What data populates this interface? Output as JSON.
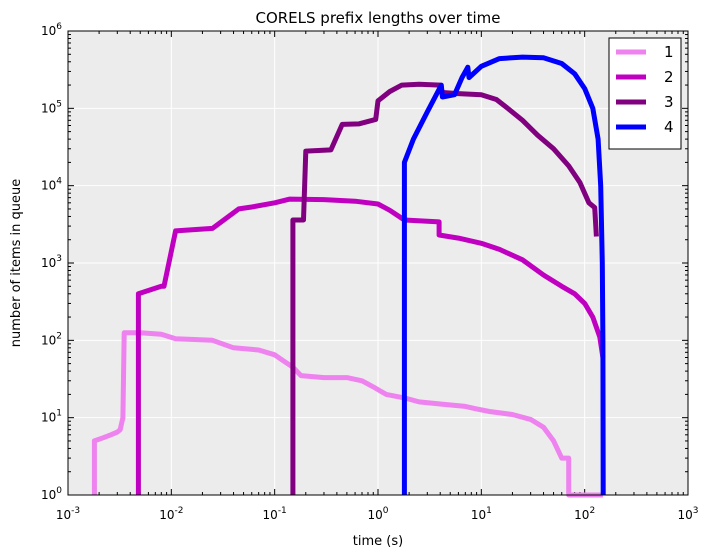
{
  "chart_data": {
    "type": "line",
    "title": "CORELS prefix lengths over time",
    "xlabel": "time (s)",
    "ylabel": "number of items in queue",
    "xscale": "log",
    "yscale": "log",
    "xlim": [
      0.001,
      1000
    ],
    "ylim": [
      1,
      1000000
    ],
    "x_ticks": [
      {
        "base": "10",
        "exp": "-3"
      },
      {
        "base": "10",
        "exp": "-2"
      },
      {
        "base": "10",
        "exp": "-1"
      },
      {
        "base": "10",
        "exp": "0"
      },
      {
        "base": "10",
        "exp": "1"
      },
      {
        "base": "10",
        "exp": "2"
      },
      {
        "base": "10",
        "exp": "3"
      }
    ],
    "y_ticks": [
      {
        "base": "10",
        "exp": "0"
      },
      {
        "base": "10",
        "exp": "1"
      },
      {
        "base": "10",
        "exp": "2"
      },
      {
        "base": "10",
        "exp": "3"
      },
      {
        "base": "10",
        "exp": "4"
      },
      {
        "base": "10",
        "exp": "5"
      },
      {
        "base": "10",
        "exp": "6"
      }
    ],
    "grid": true,
    "legend_position": "top-right",
    "series": [
      {
        "name": "1",
        "color": "#ee82ee",
        "points": [
          [
            0.0018,
            1
          ],
          [
            0.0018,
            5
          ],
          [
            0.0022,
            5.5
          ],
          [
            0.0026,
            6
          ],
          [
            0.003,
            6.5
          ],
          [
            0.0032,
            7
          ],
          [
            0.0034,
            10
          ],
          [
            0.0035,
            125
          ],
          [
            0.005,
            125
          ],
          [
            0.008,
            120
          ],
          [
            0.011,
            105
          ],
          [
            0.025,
            100
          ],
          [
            0.04,
            80
          ],
          [
            0.07,
            75
          ],
          [
            0.1,
            65
          ],
          [
            0.12,
            55
          ],
          [
            0.15,
            45
          ],
          [
            0.18,
            35
          ],
          [
            0.3,
            33
          ],
          [
            0.5,
            33
          ],
          [
            0.7,
            30
          ],
          [
            0.9,
            25
          ],
          [
            1.2,
            20
          ],
          [
            1.8,
            18
          ],
          [
            2.5,
            16
          ],
          [
            4,
            15
          ],
          [
            7,
            14
          ],
          [
            9,
            13
          ],
          [
            12,
            12
          ],
          [
            20,
            11
          ],
          [
            30,
            9.5
          ],
          [
            40,
            7.5
          ],
          [
            50,
            5
          ],
          [
            60,
            3
          ],
          [
            70,
            3
          ],
          [
            70,
            1
          ],
          [
            150,
            1
          ]
        ]
      },
      {
        "name": "2",
        "color": "#c000c0",
        "points": [
          [
            0.0048,
            1
          ],
          [
            0.0048,
            400
          ],
          [
            0.008,
            500
          ],
          [
            0.0085,
            500
          ],
          [
            0.011,
            2600
          ],
          [
            0.025,
            2800
          ],
          [
            0.045,
            5000
          ],
          [
            0.06,
            5300
          ],
          [
            0.1,
            6000
          ],
          [
            0.14,
            6700
          ],
          [
            0.3,
            6600
          ],
          [
            0.6,
            6300
          ],
          [
            1.0,
            5800
          ],
          [
            1.3,
            4800
          ],
          [
            1.8,
            3600
          ],
          [
            3.9,
            3400
          ],
          [
            3.9,
            2300
          ],
          [
            6,
            2100
          ],
          [
            10,
            1800
          ],
          [
            15,
            1500
          ],
          [
            25,
            1100
          ],
          [
            40,
            700
          ],
          [
            60,
            500
          ],
          [
            80,
            400
          ],
          [
            100,
            300
          ],
          [
            120,
            200
          ],
          [
            140,
            110
          ],
          [
            150,
            60
          ]
        ]
      },
      {
        "name": "3",
        "color": "#800080",
        "points": [
          [
            0.15,
            1
          ],
          [
            0.15,
            3600
          ],
          [
            0.19,
            3600
          ],
          [
            0.2,
            28000
          ],
          [
            0.35,
            29000
          ],
          [
            0.45,
            62000
          ],
          [
            0.65,
            63000
          ],
          [
            0.95,
            72000
          ],
          [
            1.0,
            125000
          ],
          [
            1.3,
            165000
          ],
          [
            1.7,
            200000
          ],
          [
            2.5,
            205000
          ],
          [
            4.0,
            200000
          ],
          [
            4.2,
            160000
          ],
          [
            6,
            155000
          ],
          [
            10,
            150000
          ],
          [
            14,
            130000
          ],
          [
            18,
            100000
          ],
          [
            25,
            70000
          ],
          [
            35,
            45000
          ],
          [
            50,
            30000
          ],
          [
            70,
            18000
          ],
          [
            90,
            11000
          ],
          [
            110,
            6000
          ],
          [
            125,
            5200
          ],
          [
            130,
            2200
          ]
        ]
      },
      {
        "name": "4",
        "color": "#0000ff",
        "points": [
          [
            1.8,
            1
          ],
          [
            1.8,
            20000
          ],
          [
            2.2,
            40000
          ],
          [
            3.0,
            90000
          ],
          [
            4.1,
            200000
          ],
          [
            4.2,
            140000
          ],
          [
            5.5,
            150000
          ],
          [
            6.5,
            250000
          ],
          [
            7.4,
            340000
          ],
          [
            7.6,
            250000
          ],
          [
            10,
            350000
          ],
          [
            15,
            440000
          ],
          [
            25,
            460000
          ],
          [
            40,
            450000
          ],
          [
            60,
            380000
          ],
          [
            80,
            280000
          ],
          [
            100,
            180000
          ],
          [
            120,
            100000
          ],
          [
            135,
            40000
          ],
          [
            143,
            10000
          ],
          [
            148,
            1000
          ],
          [
            150,
            100
          ],
          [
            151,
            1
          ]
        ]
      }
    ]
  }
}
